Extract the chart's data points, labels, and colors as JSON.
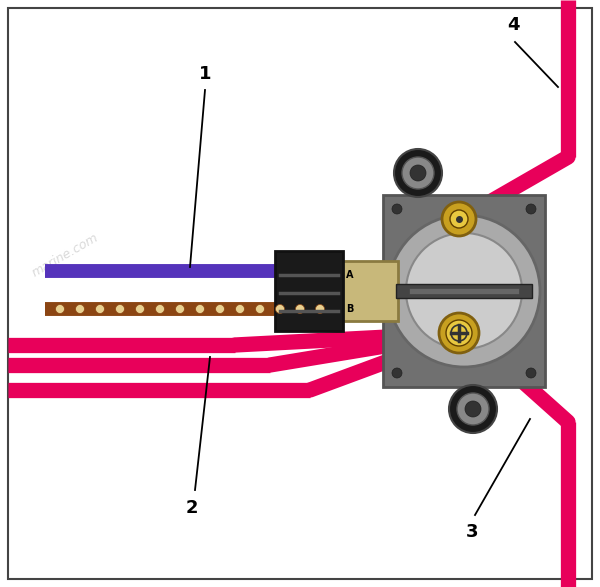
{
  "bg_color": "#ffffff",
  "border_color": "#444444",
  "wire_color": "#e8005a",
  "purple_wire_color": "#5533bb",
  "brown_wire_color": "#8B4513",
  "brown_dot_color": "#d4b06a",
  "solenoid_body_color": "#c8b87a",
  "solenoid_plate_color": "#707070",
  "solenoid_plate_dark": "#555555",
  "solenoid_circle_outer": "#aaaaaa",
  "solenoid_circle_inner": "#cccccc",
  "connector_color": "#1a1a1a",
  "connector_ridge": "#555555",
  "gold_terminal_color": "#c8a020",
  "gold_terminal_inner": "#e8c840",
  "black_rubber_color": "#1a1a1a",
  "black_rubber_inner": "#666666",
  "bar_color": "#444444",
  "label_1": "1",
  "label_2": "2",
  "label_3": "3",
  "label_4": "4",
  "watermark": "marine.com"
}
